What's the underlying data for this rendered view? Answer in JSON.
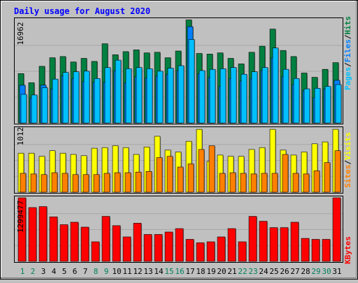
{
  "title": "Daily usage for August 2020",
  "colors": {
    "background": "#c0c0c0",
    "title": "#0000ff",
    "hits": "#008040",
    "files": "#0080ff",
    "pages": "#00c0ff",
    "visits": "#ffff00",
    "sites": "#ff8000",
    "kbytes": "#ff0000",
    "weekend_day": "#00805c",
    "weekday": "#000000"
  },
  "legend": {
    "top_hits": "Hits",
    "top_files": "Files",
    "top_pages": "Pages",
    "middle_visits": "Visits",
    "middle_sites": "Sites",
    "bottom_kbytes": "KBytes",
    "separator": "/"
  },
  "chart_data": [
    {
      "type": "bar",
      "title": "Daily usage for August 2020",
      "ymax_label": "16962",
      "ylim": [
        0,
        16962
      ],
      "categories": [
        "1",
        "2",
        "3",
        "4",
        "5",
        "6",
        "7",
        "8",
        "9",
        "10",
        "11",
        "12",
        "13",
        "14",
        "15",
        "16",
        "17",
        "18",
        "19",
        "20",
        "21",
        "22",
        "23",
        "24",
        "25",
        "26",
        "27",
        "28",
        "29",
        "30",
        "31"
      ],
      "weekend_days": [
        "1",
        "2",
        "8",
        "9",
        "15",
        "16",
        "22",
        "23",
        "29",
        "30"
      ],
      "series": [
        {
          "name": "Hits",
          "values": [
            8100,
            6600,
            9300,
            10700,
            10900,
            10000,
            10600,
            10100,
            13000,
            11200,
            11700,
            12000,
            11500,
            11600,
            10700,
            11800,
            16900,
            11400,
            11300,
            11500,
            10600,
            9700,
            11600,
            12600,
            15400,
            11900,
            10900,
            8200,
            7500,
            8800,
            9900
          ]
        },
        {
          "name": "Files",
          "values": [
            6200,
            4100,
            6200,
            5600,
            7700,
            7300,
            6800,
            6700,
            6700,
            8600,
            6600,
            7600,
            7400,
            7700,
            8000,
            8600,
            15800,
            8100,
            7500,
            6000,
            7300,
            6900,
            7300,
            8600,
            10700,
            7600,
            6300,
            5300,
            4200,
            5600,
            7000
          ]
        },
        {
          "name": "Pages",
          "values": [
            4700,
            4600,
            5800,
            7200,
            8300,
            8400,
            8500,
            7300,
            9100,
            10300,
            8900,
            9100,
            8900,
            8500,
            9000,
            9400,
            13700,
            8600,
            8800,
            8900,
            9100,
            8000,
            8400,
            9100,
            12300,
            8800,
            7300,
            5600,
            5700,
            6000,
            6300
          ]
        }
      ]
    },
    {
      "type": "bar",
      "ymax_label": "1012",
      "ylim": [
        0,
        1012
      ],
      "categories": [
        "1",
        "2",
        "3",
        "4",
        "5",
        "6",
        "7",
        "8",
        "9",
        "10",
        "11",
        "12",
        "13",
        "14",
        "15",
        "16",
        "17",
        "18",
        "19",
        "20",
        "21",
        "22",
        "23",
        "24",
        "25",
        "26",
        "27",
        "28",
        "29",
        "30",
        "31"
      ],
      "series": [
        {
          "name": "Visits",
          "values": [
            620,
            620,
            570,
            660,
            620,
            600,
            580,
            700,
            710,
            740,
            710,
            600,
            720,
            890,
            670,
            640,
            810,
            1000,
            490,
            590,
            570,
            570,
            680,
            710,
            1000,
            670,
            590,
            640,
            770,
            800,
            1000
          ]
        },
        {
          "name": "Sites",
          "values": [
            300,
            290,
            280,
            310,
            300,
            280,
            280,
            280,
            300,
            310,
            310,
            320,
            330,
            550,
            570,
            400,
            450,
            680,
            740,
            300,
            310,
            300,
            290,
            300,
            300,
            600,
            300,
            290,
            340,
            470,
            660
          ]
        }
      ]
    },
    {
      "type": "bar",
      "ymax_label": "1299477",
      "ylim": [
        0,
        1299477
      ],
      "categories": [
        "1",
        "2",
        "3",
        "4",
        "5",
        "6",
        "7",
        "8",
        "9",
        "10",
        "11",
        "12",
        "13",
        "14",
        "15",
        "16",
        "17",
        "18",
        "19",
        "20",
        "21",
        "22",
        "23",
        "24",
        "25",
        "26",
        "27",
        "28",
        "29",
        "30",
        "31"
      ],
      "series": [
        {
          "name": "KBytes",
          "values": [
            1299477,
            1100000,
            1120000,
            910000,
            750000,
            800000,
            700000,
            400000,
            920000,
            730000,
            500000,
            780000,
            550000,
            550000,
            600000,
            670000,
            450000,
            380000,
            400000,
            500000,
            670000,
            400000,
            920000,
            820000,
            690000,
            690000,
            800000,
            470000,
            450000,
            450000,
            1299477
          ]
        }
      ]
    }
  ]
}
